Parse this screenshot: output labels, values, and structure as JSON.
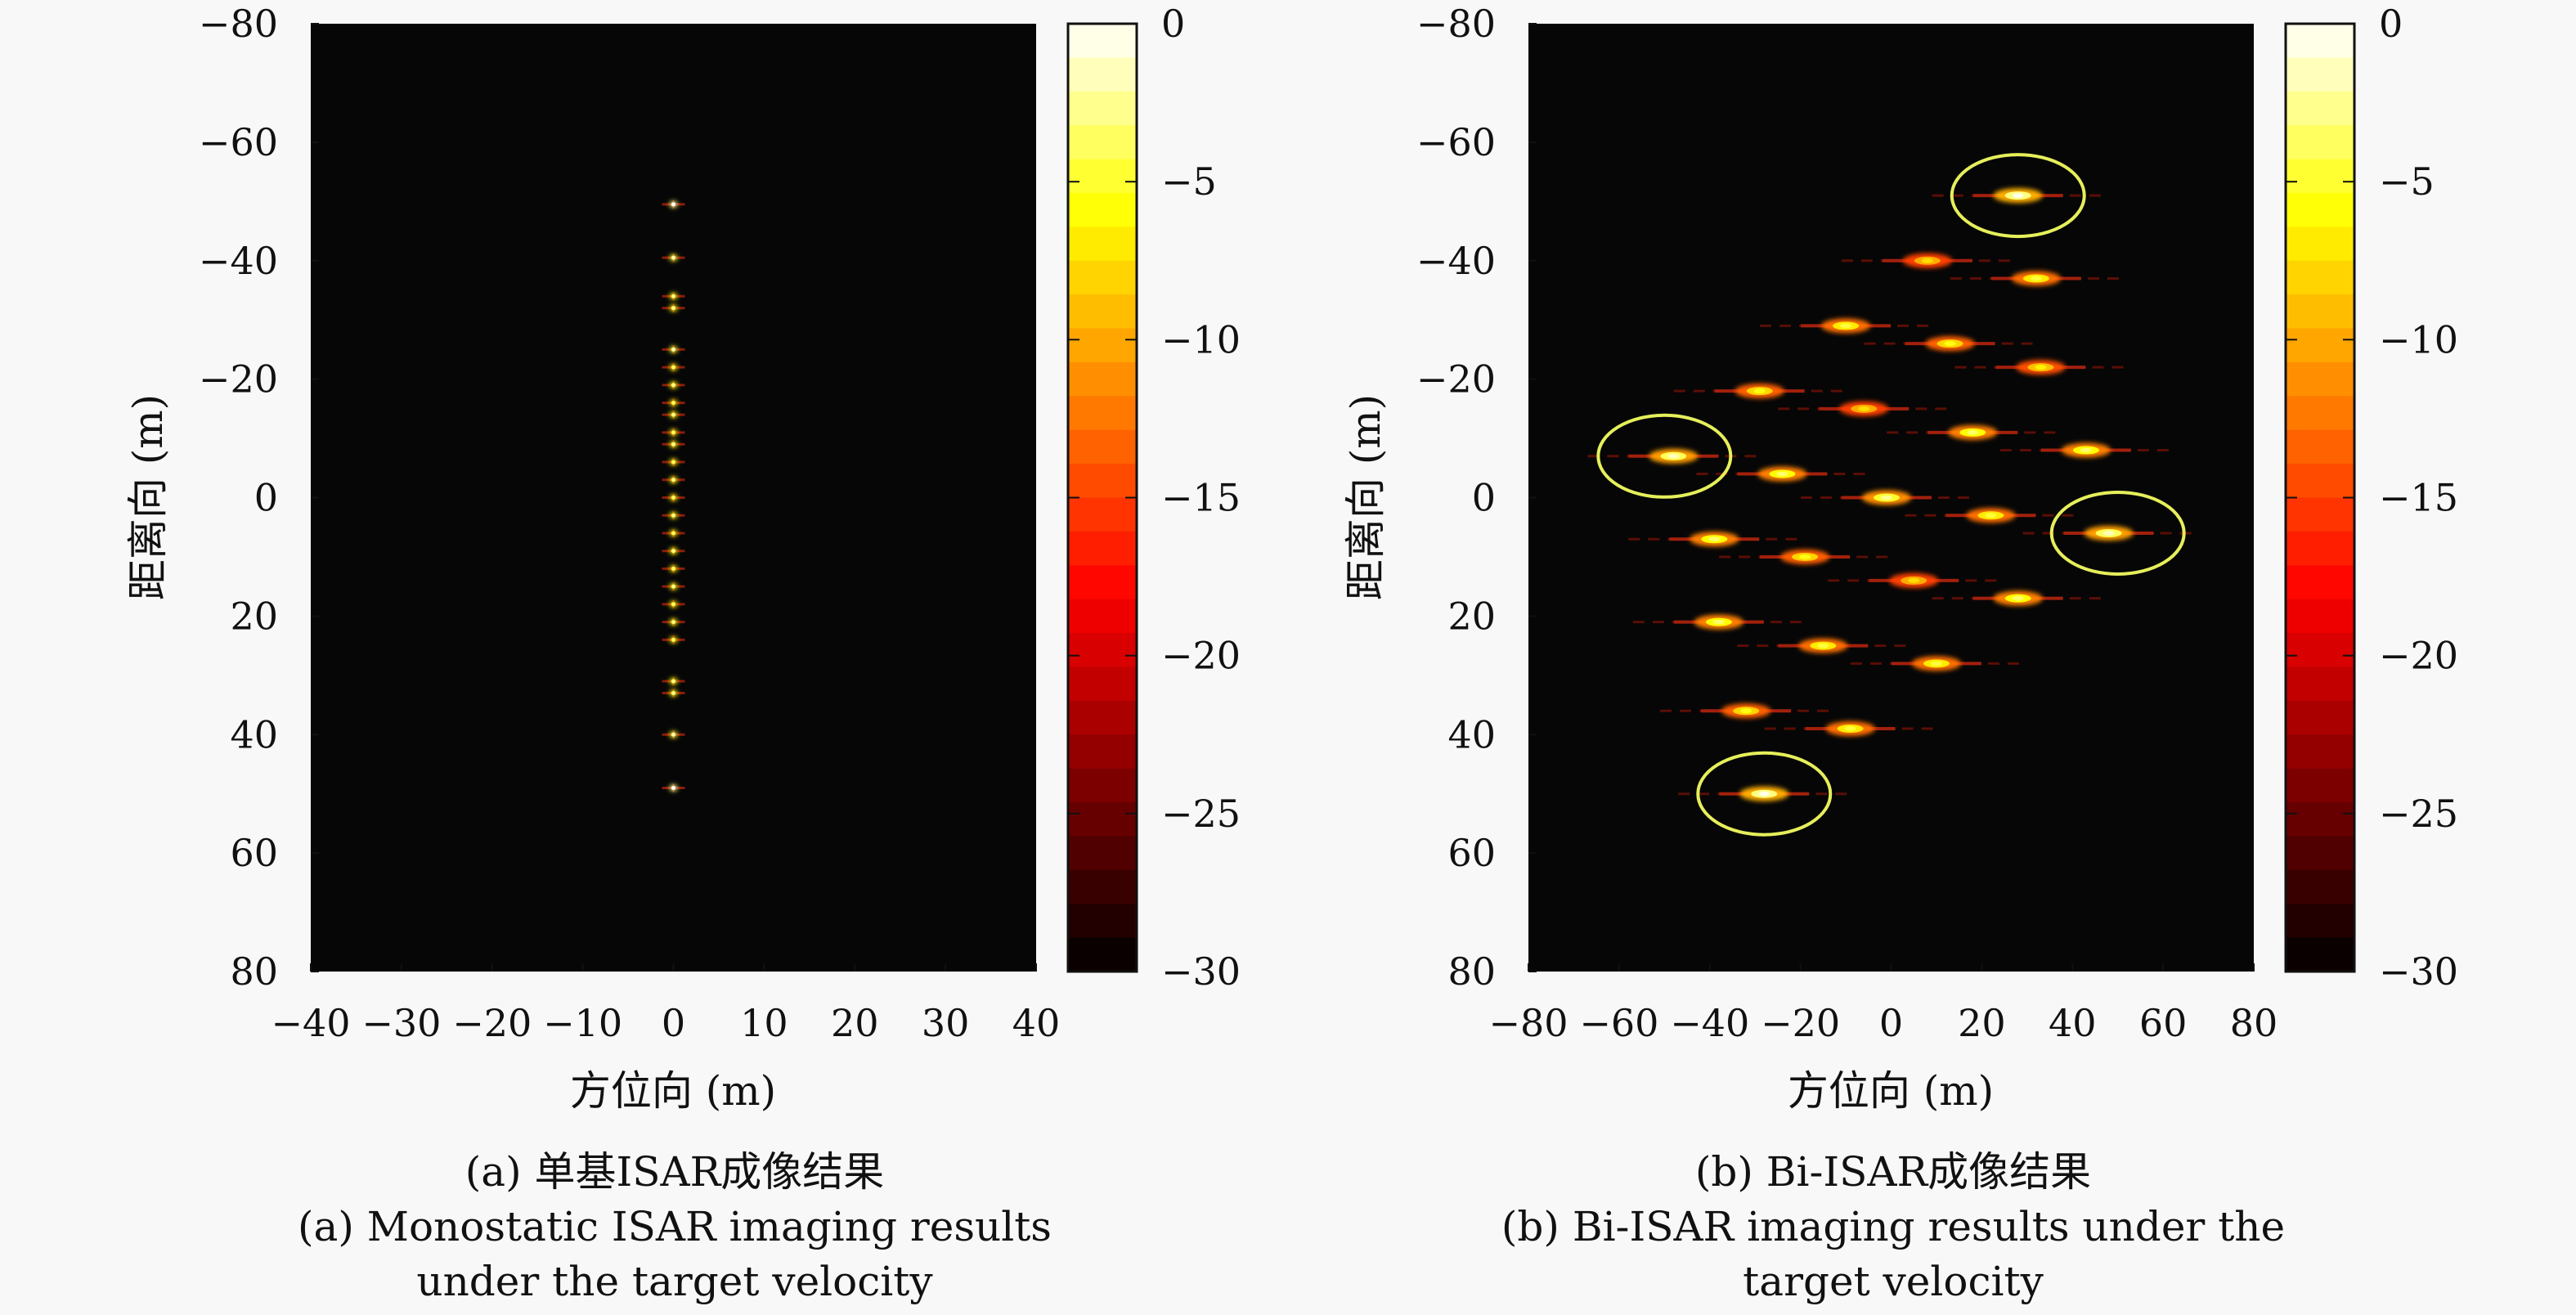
{
  "chart_data": [
    {
      "type": "heatmap",
      "xlabel": "方位向 (m)",
      "ylabel": "距离向 (m)",
      "xlim": [
        -40,
        40
      ],
      "ylim": [
        -80,
        80
      ],
      "y_axis_inverted": true,
      "xticks": [
        "−40",
        "−30",
        "−20",
        "−10",
        "0",
        "10",
        "20",
        "30",
        "40"
      ],
      "yticks": [
        "−80",
        "−60",
        "−40",
        "−20",
        "0",
        "20",
        "40",
        "60",
        "80"
      ],
      "colorbar": {
        "min": -30,
        "max": 0,
        "ticks": [
          "0",
          "−5",
          "−10",
          "−15",
          "−20",
          "−25",
          "−30"
        ]
      },
      "points": [
        {
          "x": 0,
          "y": -49.5,
          "v": -3
        },
        {
          "x": 0,
          "y": -40.5,
          "v": -5
        },
        {
          "x": 0,
          "y": -34,
          "v": -6
        },
        {
          "x": 0,
          "y": -32,
          "v": -6
        },
        {
          "x": 0,
          "y": -25,
          "v": -5
        },
        {
          "x": 0,
          "y": -22,
          "v": -7
        },
        {
          "x": 0,
          "y": -19,
          "v": -6
        },
        {
          "x": 0,
          "y": -16,
          "v": -7
        },
        {
          "x": 0,
          "y": -14,
          "v": -6
        },
        {
          "x": 0,
          "y": -11,
          "v": -7
        },
        {
          "x": 0,
          "y": -9,
          "v": -6
        },
        {
          "x": 0,
          "y": -6,
          "v": -7
        },
        {
          "x": 0,
          "y": -3,
          "v": -6
        },
        {
          "x": 0,
          "y": 0,
          "v": -7
        },
        {
          "x": 0,
          "y": 3,
          "v": -6
        },
        {
          "x": 0,
          "y": 6,
          "v": -7
        },
        {
          "x": 0,
          "y": 9,
          "v": -6
        },
        {
          "x": 0,
          "y": 12,
          "v": -7
        },
        {
          "x": 0,
          "y": 15,
          "v": -6
        },
        {
          "x": 0,
          "y": 18,
          "v": -7
        },
        {
          "x": 0,
          "y": 21,
          "v": -6
        },
        {
          "x": 0,
          "y": 24,
          "v": -7
        },
        {
          "x": 0,
          "y": 31,
          "v": -6
        },
        {
          "x": 0,
          "y": 33,
          "v": -6
        },
        {
          "x": 0,
          "y": 40,
          "v": -5
        },
        {
          "x": 0,
          "y": 49,
          "v": -3
        }
      ],
      "caption_cn": "(a) 单基ISAR成像结果",
      "caption_en": [
        "(a) Monostatic ISAR imaging results",
        "under the target velocity"
      ]
    },
    {
      "type": "heatmap",
      "xlabel": "方位向 (m)",
      "ylabel": "距离向 (m)",
      "xlim": [
        -80,
        80
      ],
      "ylim": [
        -80,
        80
      ],
      "y_axis_inverted": true,
      "xticks": [
        "−80",
        "−60",
        "−40",
        "−20",
        "0",
        "20",
        "40",
        "60",
        "80"
      ],
      "yticks": [
        "−80",
        "−60",
        "−40",
        "−20",
        "0",
        "20",
        "40",
        "60",
        "80"
      ],
      "colorbar": {
        "min": -30,
        "max": 0,
        "ticks": [
          "0",
          "−5",
          "−10",
          "−15",
          "−20",
          "−25",
          "−30"
        ]
      },
      "points": [
        {
          "x": 28,
          "y": -51,
          "v": -3
        },
        {
          "x": 8,
          "y": -40,
          "v": -10
        },
        {
          "x": 32,
          "y": -37,
          "v": -7
        },
        {
          "x": -10,
          "y": -29,
          "v": -7
        },
        {
          "x": 13,
          "y": -26,
          "v": -8
        },
        {
          "x": 33,
          "y": -22,
          "v": -9
        },
        {
          "x": -29,
          "y": -18,
          "v": -8
        },
        {
          "x": -6,
          "y": -15,
          "v": -10
        },
        {
          "x": 18,
          "y": -11,
          "v": -6
        },
        {
          "x": 43,
          "y": -8,
          "v": -6
        },
        {
          "x": -48,
          "y": -7,
          "v": -4
        },
        {
          "x": -24,
          "y": -4,
          "v": -6
        },
        {
          "x": -1,
          "y": 0,
          "v": -5
        },
        {
          "x": 22,
          "y": 3,
          "v": -7
        },
        {
          "x": 48,
          "y": 6,
          "v": -4
        },
        {
          "x": -39,
          "y": 7,
          "v": -6
        },
        {
          "x": -19,
          "y": 10,
          "v": -8
        },
        {
          "x": 5,
          "y": 14,
          "v": -10
        },
        {
          "x": 28,
          "y": 17,
          "v": -6
        },
        {
          "x": -38,
          "y": 21,
          "v": -6
        },
        {
          "x": -15,
          "y": 25,
          "v": -7
        },
        {
          "x": 10,
          "y": 28,
          "v": -7
        },
        {
          "x": -32,
          "y": 36,
          "v": -8
        },
        {
          "x": -9,
          "y": 39,
          "v": -7
        },
        {
          "x": -28,
          "y": 50,
          "v": -3
        }
      ],
      "highlights": [
        {
          "x": 28,
          "y": -51
        },
        {
          "x": -50,
          "y": -7
        },
        {
          "x": 50,
          "y": 6
        },
        {
          "x": -28,
          "y": 50
        }
      ],
      "caption_cn": "(b) Bi-ISAR成像结果",
      "caption_en": [
        "(b) Bi-ISAR imaging results under the",
        "target velocity"
      ]
    }
  ]
}
